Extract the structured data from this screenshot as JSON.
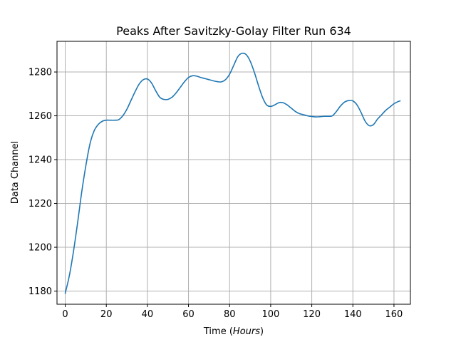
{
  "chart_data": {
    "type": "line",
    "title": "Peaks After Savitzky-Golay Filter Run 634",
    "xlabel_prefix": "Time (",
    "xlabel_italic": "Hours",
    "xlabel_suffix": ")",
    "ylabel": "Data Channel",
    "xlim": [
      -4,
      168
    ],
    "ylim": [
      1174,
      1294
    ],
    "xticks": [
      0,
      20,
      40,
      60,
      80,
      100,
      120,
      140,
      160
    ],
    "yticks": [
      1180,
      1200,
      1220,
      1240,
      1260,
      1280
    ],
    "grid": true,
    "line_color": "#1f77b4",
    "series": [
      {
        "x": [
          0,
          2,
          4,
          6,
          8,
          10,
          12,
          14,
          16,
          18,
          20,
          22,
          24,
          26,
          28,
          30,
          32,
          34,
          36,
          38,
          40,
          42,
          44,
          46,
          48,
          50,
          52,
          54,
          56,
          58,
          60,
          62,
          64,
          66,
          68,
          70,
          72,
          74,
          76,
          78,
          80,
          82,
          84,
          86,
          88,
          90,
          92,
          94,
          96,
          98,
          100,
          102,
          104,
          106,
          108,
          110,
          112,
          114,
          116,
          118,
          120,
          122,
          124,
          126,
          128,
          130,
          132,
          134,
          136,
          138,
          140,
          142,
          144,
          146,
          148,
          150,
          152,
          154,
          156,
          158,
          160,
          162,
          163
        ],
        "y": [
          1179,
          1187,
          1198,
          1211,
          1225,
          1237,
          1247,
          1253,
          1256,
          1257.5,
          1258,
          1258,
          1258,
          1258.2,
          1260,
          1263,
          1267,
          1271,
          1274.5,
          1276.5,
          1276.8,
          1275,
          1271.5,
          1268.5,
          1267.5,
          1267.5,
          1268.5,
          1270.5,
          1273,
          1275.5,
          1277.5,
          1278.3,
          1278.1,
          1277.5,
          1277,
          1276.5,
          1276,
          1275.6,
          1275.5,
          1276.5,
          1279,
          1283,
          1287,
          1288.5,
          1288,
          1285,
          1280,
          1274,
          1268.5,
          1265,
          1264.3,
          1265,
          1266,
          1266,
          1265,
          1263.5,
          1262,
          1261,
          1260.5,
          1260,
          1259.7,
          1259.5,
          1259.6,
          1259.8,
          1259.8,
          1260,
          1262,
          1264.5,
          1266.3,
          1267,
          1266.8,
          1265,
          1261.5,
          1257.5,
          1255.5,
          1256,
          1258.5,
          1260.5,
          1262.5,
          1264,
          1265.5,
          1266.5,
          1266.8
        ]
      }
    ]
  }
}
